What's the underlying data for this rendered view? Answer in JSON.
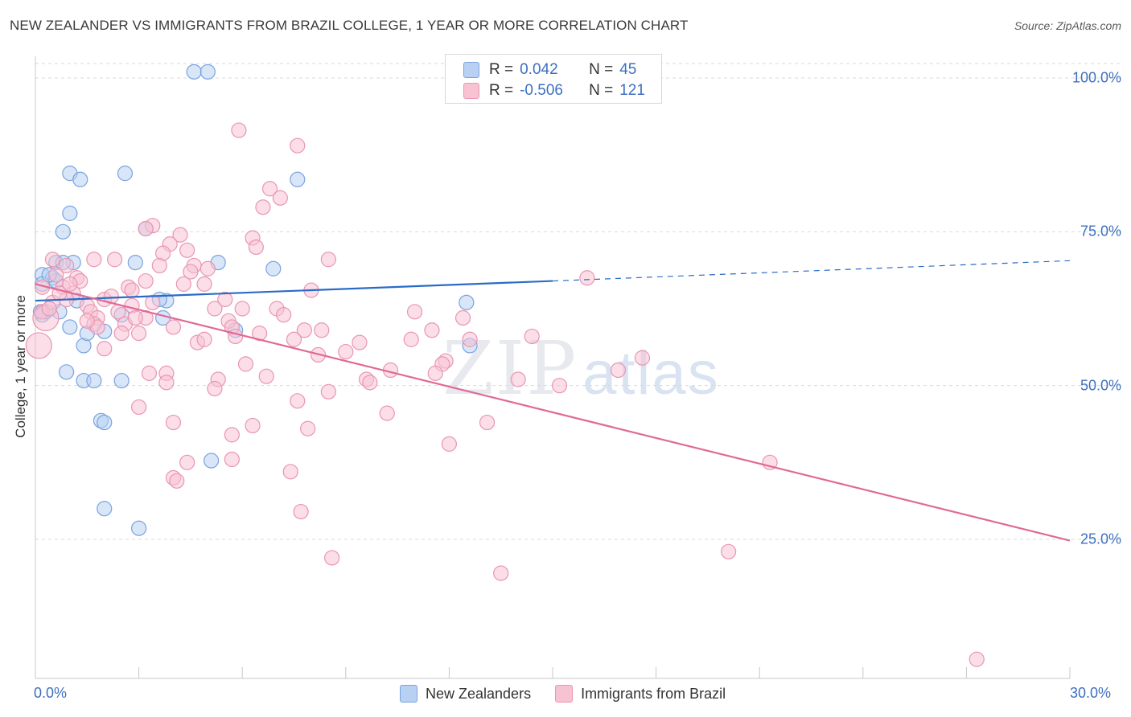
{
  "title": "NEW ZEALANDER VS IMMIGRANTS FROM BRAZIL COLLEGE, 1 YEAR OR MORE CORRELATION CHART",
  "source": "Source: ZipAtlas.com",
  "watermark": {
    "zip": "ZIP",
    "atlas": "atlas"
  },
  "colors": {
    "blue_fill": "#b8d1f3",
    "blue_stroke": "#7aa3df",
    "blue_line": "#2a6bc6",
    "pink_fill": "#f7c3d3",
    "pink_stroke": "#e996b2",
    "pink_line": "#e06a95",
    "tick_text": "#3d6fc0",
    "grid": "#d9d9d9"
  },
  "legend": {
    "rows": [
      {
        "r_label": "R =",
        "r_value": "0.042",
        "n_label": "N =",
        "n_value": "45"
      },
      {
        "r_label": "R =",
        "r_value": "-0.506",
        "n_label": "N =",
        "n_value": "121"
      }
    ]
  },
  "bottom_legend": [
    "New Zealanders",
    "Immigrants from Brazil"
  ],
  "chart_data": {
    "type": "scatter",
    "title": "NEW ZEALANDER VS IMMIGRANTS FROM BRAZIL COLLEGE, 1 YEAR OR MORE CORRELATION CHART",
    "xlabel": "",
    "ylabel": "College, 1 year or more",
    "xlim": [
      0,
      30
    ],
    "ylim": [
      0,
      105
    ],
    "x_tick_labels": [
      "0.0%",
      "30.0%"
    ],
    "y_ticks": [
      25,
      50,
      75,
      100
    ],
    "y_tick_labels": [
      "25.0%",
      "50.0%",
      "75.0%",
      "100.0%"
    ],
    "grid": "horizontal dashed",
    "legend_position": "top-center",
    "series": [
      {
        "name": "New Zealanders",
        "R": 0.042,
        "N": 45,
        "trend": {
          "x0": 0,
          "y0": 63.8,
          "x1": 15,
          "y1": 67.0,
          "dashed_to_x": 30,
          "dashed_to_y": 70.3
        },
        "points": [
          [
            4.6,
            101
          ],
          [
            5.0,
            101
          ],
          [
            1.0,
            84.5
          ],
          [
            2.6,
            84.5
          ],
          [
            1.3,
            83.5
          ],
          [
            7.6,
            83.5
          ],
          [
            1.0,
            78
          ],
          [
            3.2,
            75.5
          ],
          [
            0.8,
            75
          ],
          [
            0.6,
            70
          ],
          [
            1.1,
            70
          ],
          [
            2.9,
            70
          ],
          [
            5.3,
            70
          ],
          [
            6.9,
            69
          ],
          [
            0.2,
            68
          ],
          [
            0.5,
            67.5
          ],
          [
            0.2,
            66.5
          ],
          [
            1.2,
            63.8
          ],
          [
            3.8,
            63.8
          ],
          [
            12.5,
            63.5
          ],
          [
            0.7,
            62
          ],
          [
            0.2,
            61.5
          ],
          [
            2.5,
            61.5
          ],
          [
            3.7,
            61
          ],
          [
            1.0,
            59.5
          ],
          [
            2.0,
            58.8
          ],
          [
            5.8,
            59
          ],
          [
            1.4,
            56.5
          ],
          [
            12.6,
            56.5
          ],
          [
            0.9,
            52.2
          ],
          [
            1.4,
            50.8
          ],
          [
            1.7,
            50.8
          ],
          [
            2.5,
            50.8
          ],
          [
            1.9,
            44.3
          ],
          [
            2.0,
            44.0
          ],
          [
            5.1,
            37.8
          ],
          [
            2.0,
            30.0
          ],
          [
            3.0,
            26.8
          ],
          [
            0.6,
            67.0
          ],
          [
            0.3,
            62.0
          ],
          [
            0.15,
            62.0
          ],
          [
            0.8,
            70.0
          ],
          [
            0.4,
            68.0
          ],
          [
            1.5,
            58.5
          ],
          [
            3.6,
            64.0
          ]
        ]
      },
      {
        "name": "Immigrants from Brazil",
        "R": -0.506,
        "N": 121,
        "trend": {
          "x0": 0,
          "y0": 66.5,
          "x1": 30,
          "y1": 24.8
        },
        "points": [
          [
            5.9,
            91.5
          ],
          [
            7.6,
            89
          ],
          [
            6.8,
            82
          ],
          [
            7.1,
            80.5
          ],
          [
            6.6,
            79
          ],
          [
            3.4,
            76
          ],
          [
            3.2,
            75.5
          ],
          [
            4.2,
            74.5
          ],
          [
            6.3,
            74
          ],
          [
            3.9,
            73
          ],
          [
            6.4,
            72.5
          ],
          [
            4.4,
            72
          ],
          [
            3.7,
            71.5
          ],
          [
            0.5,
            70.5
          ],
          [
            1.7,
            70.5
          ],
          [
            2.3,
            70.5
          ],
          [
            8.5,
            70.5
          ],
          [
            3.6,
            69.5
          ],
          [
            4.6,
            69.5
          ],
          [
            5.0,
            69
          ],
          [
            4.5,
            68.5
          ],
          [
            1.2,
            67.5
          ],
          [
            1.3,
            67
          ],
          [
            3.2,
            67
          ],
          [
            16.0,
            67.5
          ],
          [
            4.9,
            66.5
          ],
          [
            0.8,
            66
          ],
          [
            2.7,
            66
          ],
          [
            2.8,
            65.5
          ],
          [
            8.0,
            65.5
          ],
          [
            1.1,
            65
          ],
          [
            0.9,
            64
          ],
          [
            2.0,
            64
          ],
          [
            5.5,
            64
          ],
          [
            1.5,
            63
          ],
          [
            2.8,
            63
          ],
          [
            5.2,
            62.5
          ],
          [
            6.0,
            62.5
          ],
          [
            7.0,
            62.5
          ],
          [
            0.2,
            62
          ],
          [
            1.6,
            62
          ],
          [
            2.4,
            62
          ],
          [
            11.0,
            62
          ],
          [
            7.2,
            61.5
          ],
          [
            1.8,
            61
          ],
          [
            3.2,
            61
          ],
          [
            12.4,
            61
          ],
          [
            5.6,
            60.5
          ],
          [
            1.7,
            60
          ],
          [
            2.6,
            60
          ],
          [
            1.8,
            59.5
          ],
          [
            4.0,
            59.5
          ],
          [
            5.7,
            59.5
          ],
          [
            7.8,
            59
          ],
          [
            8.3,
            59
          ],
          [
            11.5,
            59
          ],
          [
            2.5,
            58.5
          ],
          [
            5.8,
            58
          ],
          [
            14.4,
            58
          ],
          [
            7.5,
            57.5
          ],
          [
            10.9,
            57.5
          ],
          [
            4.7,
            57
          ],
          [
            4.9,
            57.5
          ],
          [
            9.0,
            55.5
          ],
          [
            11.9,
            54
          ],
          [
            17.6,
            54.5
          ],
          [
            6.1,
            53.5
          ],
          [
            11.8,
            53.5
          ],
          [
            16.9,
            52.5
          ],
          [
            11.6,
            52
          ],
          [
            3.3,
            52
          ],
          [
            3.8,
            52
          ],
          [
            5.3,
            51
          ],
          [
            6.7,
            51.5
          ],
          [
            14.0,
            51
          ],
          [
            3.8,
            50.5
          ],
          [
            9.6,
            51
          ],
          [
            9.7,
            50.5
          ],
          [
            5.2,
            49.5
          ],
          [
            8.5,
            49
          ],
          [
            15.2,
            50
          ],
          [
            7.6,
            47.5
          ],
          [
            3.0,
            46.5
          ],
          [
            10.2,
            45.5
          ],
          [
            6.3,
            43.5
          ],
          [
            13.1,
            44
          ],
          [
            4.0,
            44
          ],
          [
            7.9,
            43
          ],
          [
            5.7,
            42
          ],
          [
            12.0,
            40.5
          ],
          [
            4.4,
            37.5
          ],
          [
            5.7,
            38
          ],
          [
            21.3,
            37.5
          ],
          [
            7.4,
            36
          ],
          [
            4.0,
            35
          ],
          [
            4.1,
            34.5
          ],
          [
            7.7,
            29.5
          ],
          [
            20.1,
            23
          ],
          [
            8.6,
            22
          ],
          [
            13.5,
            19.5
          ],
          [
            27.3,
            5.5
          ],
          [
            0.1,
            56.5
          ],
          [
            0.2,
            66
          ],
          [
            0.3,
            61
          ],
          [
            0.6,
            68
          ],
          [
            0.5,
            63.5
          ],
          [
            0.7,
            65
          ],
          [
            1.0,
            66.5
          ],
          [
            0.4,
            62.5
          ],
          [
            0.9,
            69.5
          ],
          [
            1.5,
            60.5
          ],
          [
            2.2,
            64.5
          ],
          [
            3.0,
            58.5
          ],
          [
            3.4,
            63.5
          ],
          [
            2.0,
            56
          ],
          [
            6.5,
            58.5
          ],
          [
            9.4,
            57
          ],
          [
            12.6,
            57.5
          ],
          [
            8.2,
            55
          ],
          [
            10.3,
            52.5
          ],
          [
            4.3,
            66.5
          ],
          [
            2.9,
            61
          ]
        ]
      }
    ]
  }
}
